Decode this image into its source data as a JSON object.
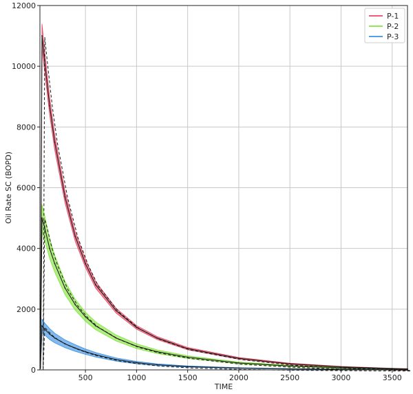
{
  "chart_data": {
    "type": "line",
    "title": "",
    "xlabel": "TIME",
    "ylabel": "Oil Rate SC (BOPD)",
    "xlim": [
      55,
      3650
    ],
    "ylim": [
      0,
      12000
    ],
    "x_ticks": [
      500,
      1000,
      1500,
      2000,
      2500,
      3000,
      3500
    ],
    "y_ticks": [
      0,
      2000,
      4000,
      6000,
      8000,
      10000,
      12000
    ],
    "grid": true,
    "legend_position": "top-right",
    "series": [
      {
        "name": "P-1",
        "color": "#e8294a",
        "band_color": "#e8294a",
        "x": [
          60,
          75,
          100,
          150,
          200,
          300,
          400,
          500,
          600,
          800,
          1000,
          1200,
          1500,
          2000,
          2500,
          3000,
          3500,
          3650
        ],
        "y": [
          200,
          11000,
          10200,
          8700,
          7500,
          5700,
          4400,
          3500,
          2800,
          1950,
          1400,
          1050,
          700,
          380,
          200,
          100,
          45,
          30
        ],
        "band_width": [
          0,
          400,
          350,
          300,
          260,
          200,
          160,
          130,
          110,
          80,
          60,
          50,
          40,
          30,
          20,
          15,
          10,
          10
        ]
      },
      {
        "name": "P-2",
        "color": "#6fe01c",
        "band_color": "#6fe01c",
        "x": [
          60,
          75,
          100,
          150,
          200,
          300,
          400,
          500,
          600,
          800,
          1000,
          1200,
          1500,
          2000,
          2500,
          3000,
          3500,
          3650
        ],
        "y": [
          100,
          5000,
          4700,
          4000,
          3500,
          2700,
          2150,
          1750,
          1450,
          1050,
          780,
          600,
          420,
          230,
          130,
          70,
          35,
          25
        ],
        "band_width": [
          0,
          450,
          400,
          330,
          280,
          220,
          180,
          150,
          130,
          100,
          80,
          60,
          45,
          30,
          20,
          15,
          10,
          10
        ]
      },
      {
        "name": "P-3",
        "color": "#1a7fe0",
        "band_color": "#1a7fe0",
        "x": [
          60,
          75,
          100,
          150,
          200,
          300,
          400,
          500,
          600,
          800,
          1000,
          1200,
          1500,
          2000,
          2500,
          3000,
          3500,
          3650
        ],
        "y": [
          50,
          1450,
          1350,
          1180,
          1050,
          860,
          720,
          600,
          500,
          340,
          240,
          170,
          110,
          60,
          35,
          20,
          10,
          8
        ],
        "band_width": [
          0,
          220,
          200,
          180,
          160,
          130,
          110,
          90,
          75,
          55,
          40,
          30,
          20,
          12,
          8,
          6,
          4,
          4
        ]
      }
    ]
  }
}
